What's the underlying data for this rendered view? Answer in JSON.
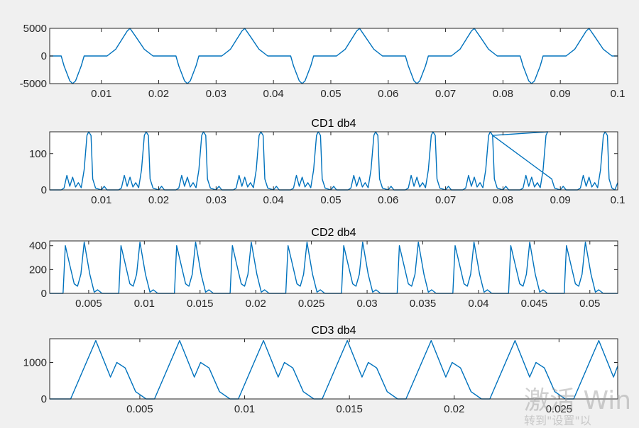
{
  "watermark": {
    "main": "激活 Win",
    "sub": "转到\"设置\"以"
  },
  "colors": {
    "line": "#0072bd",
    "axes": "#262626",
    "background": "#f0f0f0",
    "plot_area": "#ffffff"
  },
  "chart_data": [
    {
      "type": "line",
      "title": "",
      "xlim": [
        0.001,
        0.1
      ],
      "ylim": [
        -5000,
        5000
      ],
      "xticks": [
        0.01,
        0.02,
        0.03,
        0.04,
        0.05,
        0.06,
        0.07,
        0.08,
        0.09,
        0.1
      ],
      "xtick_labels": [
        "0.01",
        "0.02",
        "0.03",
        "0.04",
        "0.05",
        "0.06",
        "0.07",
        "0.08",
        "0.09",
        "0.1"
      ],
      "yticks": [
        5000,
        0,
        -5000
      ],
      "ytick_labels": [
        "5000",
        "0",
        "-5000"
      ],
      "series": [
        {
          "x": [
            0.001,
            0.003,
            0.0035,
            0.0045,
            0.005,
            0.0055,
            0.0065,
            0.007,
            0.011,
            0.0125,
            0.0145,
            0.015,
            0.016,
            0.0175,
            0.019,
            0.023,
            0.0235,
            0.0245,
            0.025,
            0.0255,
            0.0265,
            0.027,
            0.031,
            0.0325,
            0.0345,
            0.035,
            0.036,
            0.0375,
            0.039,
            0.043,
            0.0435,
            0.0445,
            0.045,
            0.0455,
            0.0465,
            0.047,
            0.051,
            0.0525,
            0.0545,
            0.055,
            0.056,
            0.0575,
            0.059,
            0.063,
            0.0635,
            0.0645,
            0.065,
            0.0655,
            0.0665,
            0.067,
            0.071,
            0.0725,
            0.0745,
            0.075,
            0.076,
            0.0775,
            0.079,
            0.083,
            0.0835,
            0.0845,
            0.085,
            0.0855,
            0.0865,
            0.087,
            0.091,
            0.0925,
            0.0945,
            0.095,
            0.096,
            0.0975,
            0.099,
            0.1
          ],
          "y": [
            0,
            0,
            -1800,
            -4500,
            -5000,
            -4500,
            -1800,
            0,
            0,
            1200,
            4500,
            5000,
            3500,
            1200,
            0,
            0,
            -1800,
            -4500,
            -5000,
            -4500,
            -1800,
            0,
            0,
            1200,
            4500,
            5000,
            3500,
            1200,
            0,
            0,
            -1800,
            -4500,
            -5000,
            -4500,
            -1800,
            0,
            0,
            1200,
            4500,
            5000,
            3500,
            1200,
            0,
            0,
            -1800,
            -4500,
            -5000,
            -4500,
            -1800,
            0,
            0,
            1200,
            4500,
            5000,
            3500,
            1200,
            0,
            0,
            -1800,
            -4500,
            -5000,
            -4500,
            -1800,
            0,
            0,
            1200,
            4500,
            5000,
            3500,
            1200,
            0,
            0
          ]
        }
      ]
    },
    {
      "type": "line",
      "title": "CD1 db4",
      "xlim": [
        0.001,
        0.1
      ],
      "ylim": [
        0,
        160
      ],
      "xticks": [
        0.01,
        0.02,
        0.03,
        0.04,
        0.05,
        0.06,
        0.07,
        0.08,
        0.09,
        0.1
      ],
      "xtick_labels": [
        "0.01",
        "0.02",
        "0.03",
        "0.04",
        "0.05",
        "0.06",
        "0.07",
        "0.08",
        "0.09",
        "0.1"
      ],
      "yticks": [
        100,
        0
      ],
      "ytick_labels": [
        "100",
        "0"
      ],
      "series": [
        {
          "x": [
            0.001,
            0.003,
            0.0035,
            0.004,
            0.0045,
            0.005,
            0.0055,
            0.006,
            0.0065,
            0.007,
            0.0075,
            0.0078,
            0.0082,
            0.0085,
            0.009,
            0.01,
            0.0105,
            0.011,
            0.013,
            0.0135,
            0.014,
            0.0145,
            0.015,
            0.0155,
            0.016,
            0.0165,
            0.017,
            0.0175,
            0.0178,
            0.0182,
            0.0185,
            0.019,
            0.02,
            0.0205,
            0.021,
            0.023,
            0.0235,
            0.024,
            0.0245,
            0.025,
            0.0255,
            0.026,
            0.0265,
            0.027,
            0.0275,
            0.0278,
            0.0282,
            0.0285,
            0.029,
            0.03,
            0.0305,
            0.031,
            0.033,
            0.0335,
            0.034,
            0.0345,
            0.035,
            0.0355,
            0.036,
            0.0365,
            0.037,
            0.0375,
            0.0378,
            0.0382,
            0.0385,
            0.039,
            0.04,
            0.0405,
            0.041,
            0.043,
            0.0435,
            0.044,
            0.0445,
            0.045,
            0.0455,
            0.046,
            0.0465,
            0.047,
            0.0475,
            0.0478,
            0.0482,
            0.0485,
            0.049,
            0.05,
            0.0505,
            0.051,
            0.053,
            0.0535,
            0.054,
            0.0545,
            0.055,
            0.0555,
            0.056,
            0.0565,
            0.057,
            0.0575,
            0.0578,
            0.0582,
            0.0585,
            0.059,
            0.06,
            0.0605,
            0.061,
            0.063,
            0.0635,
            0.064,
            0.0645,
            0.065,
            0.0655,
            0.066,
            0.0665,
            0.067,
            0.0675,
            0.0678,
            0.0682,
            0.0685,
            0.069,
            0.07,
            0.0705,
            0.071,
            0.073,
            0.0735,
            0.074,
            0.0745,
            0.075,
            0.0755,
            0.076,
            0.0765,
            0.077,
            0.0775,
            0.0778,
            0.0782,
            0.0785,
            0.079,
            0.08,
            0.0805,
            0.081,
            0.083,
            0.0835,
            0.084,
            0.0845,
            0.085,
            0.0855,
            0.086,
            0.0865,
            0.087,
            0.0875,
            0.0878,
            0.0782,
            0.0885,
            0.089,
            0.09,
            0.0905,
            0.091,
            0.093,
            0.0935,
            0.094,
            0.0945,
            0.095,
            0.0955,
            0.096,
            0.0965,
            0.097,
            0.0975,
            0.0978,
            0.0982,
            0.0985,
            0.099,
            0.0995,
            0.1
          ],
          "y": [
            0,
            0,
            5,
            40,
            10,
            35,
            8,
            20,
            6,
            55,
            150,
            160,
            150,
            30,
            5,
            0,
            10,
            0,
            0,
            5,
            40,
            10,
            35,
            8,
            20,
            6,
            55,
            150,
            160,
            150,
            30,
            5,
            0,
            10,
            0,
            0,
            5,
            40,
            10,
            35,
            8,
            20,
            6,
            55,
            150,
            160,
            150,
            30,
            5,
            0,
            10,
            0,
            0,
            5,
            40,
            10,
            35,
            8,
            20,
            6,
            55,
            150,
            160,
            150,
            30,
            5,
            0,
            10,
            0,
            0,
            5,
            40,
            10,
            35,
            8,
            20,
            6,
            55,
            150,
            160,
            150,
            30,
            5,
            0,
            10,
            0,
            0,
            5,
            40,
            10,
            35,
            8,
            20,
            6,
            55,
            150,
            160,
            150,
            30,
            5,
            0,
            10,
            0,
            0,
            5,
            40,
            10,
            35,
            8,
            20,
            6,
            55,
            150,
            160,
            150,
            30,
            5,
            0,
            10,
            0,
            0,
            5,
            40,
            10,
            35,
            8,
            20,
            6,
            55,
            150,
            160,
            150,
            30,
            5,
            0,
            10,
            0,
            0,
            5,
            40,
            10,
            35,
            8,
            20,
            6,
            55,
            150,
            160,
            150,
            30,
            5,
            0,
            10,
            0,
            0,
            5,
            40,
            10,
            35,
            8,
            20,
            6,
            55,
            150,
            160,
            150,
            30,
            5,
            0,
            20
          ]
        }
      ]
    },
    {
      "type": "line",
      "title": "CD2 db4",
      "xlim": [
        0.0015,
        0.0525
      ],
      "ylim": [
        0,
        440
      ],
      "xticks": [
        0.005,
        0.01,
        0.015,
        0.02,
        0.025,
        0.03,
        0.035,
        0.04,
        0.045,
        0.05
      ],
      "xtick_labels": [
        "0.005",
        "0.01",
        "0.015",
        "0.02",
        "0.025",
        "0.03",
        "0.035",
        "0.04",
        "0.045",
        "0.05"
      ],
      "yticks": [
        400,
        200,
        0
      ],
      "ytick_labels": [
        "400",
        "200",
        "0"
      ],
      "series": [
        {
          "x": [
            0.0015,
            0.0027,
            0.0029,
            0.0033,
            0.0037,
            0.004,
            0.0043,
            0.0046,
            0.0051,
            0.0055,
            0.0058,
            0.0062,
            0.0077,
            0.0079,
            0.0083,
            0.0087,
            0.009,
            0.0093,
            0.0096,
            0.0101,
            0.0105,
            0.0108,
            0.0112,
            0.0127,
            0.0129,
            0.0133,
            0.0137,
            0.014,
            0.0143,
            0.0146,
            0.0151,
            0.0155,
            0.0158,
            0.0162,
            0.0177,
            0.0179,
            0.0183,
            0.0187,
            0.019,
            0.0193,
            0.0196,
            0.0201,
            0.0205,
            0.0208,
            0.0212,
            0.0227,
            0.0229,
            0.0233,
            0.0237,
            0.024,
            0.0243,
            0.0246,
            0.0251,
            0.0255,
            0.0258,
            0.0262,
            0.0277,
            0.0279,
            0.0283,
            0.0287,
            0.029,
            0.0293,
            0.0296,
            0.0301,
            0.0305,
            0.0308,
            0.0312,
            0.0327,
            0.0329,
            0.0333,
            0.0337,
            0.034,
            0.0343,
            0.0346,
            0.0351,
            0.0355,
            0.0358,
            0.0362,
            0.0377,
            0.0379,
            0.0383,
            0.0387,
            0.039,
            0.0393,
            0.0396,
            0.0401,
            0.0405,
            0.0408,
            0.0412,
            0.0427,
            0.0429,
            0.0433,
            0.0437,
            0.044,
            0.0443,
            0.0446,
            0.0451,
            0.0455,
            0.0458,
            0.0462,
            0.0477,
            0.0479,
            0.0483,
            0.0487,
            0.049,
            0.0493,
            0.0496,
            0.0501,
            0.0505,
            0.0508,
            0.0512,
            0.0525
          ],
          "y": [
            0,
            0,
            400,
            240,
            80,
            60,
            160,
            430,
            160,
            10,
            30,
            0,
            0,
            400,
            240,
            80,
            60,
            160,
            430,
            160,
            10,
            30,
            0,
            0,
            400,
            240,
            80,
            60,
            160,
            430,
            160,
            10,
            30,
            0,
            0,
            400,
            240,
            80,
            60,
            160,
            430,
            160,
            10,
            30,
            0,
            0,
            400,
            240,
            80,
            60,
            160,
            430,
            160,
            10,
            30,
            0,
            0,
            400,
            240,
            80,
            60,
            160,
            430,
            160,
            10,
            30,
            0,
            0,
            400,
            240,
            80,
            60,
            160,
            430,
            160,
            10,
            30,
            0,
            0,
            400,
            240,
            80,
            60,
            160,
            430,
            160,
            10,
            30,
            0,
            0,
            400,
            240,
            80,
            60,
            160,
            430,
            160,
            10,
            30,
            0,
            0,
            400,
            240,
            80,
            60,
            160,
            430,
            160,
            10,
            30,
            0,
            0
          ]
        }
      ]
    },
    {
      "type": "line",
      "title": "CD3 db4",
      "xlim": [
        0.0007,
        0.0278
      ],
      "ylim": [
        0,
        1650
      ],
      "xticks": [
        0.005,
        0.01,
        0.015,
        0.02,
        0.025
      ],
      "xtick_labels": [
        "0.005",
        "0.01",
        "0.015",
        "0.02",
        "0.025"
      ],
      "yticks": [
        1000,
        0
      ],
      "ytick_labels": [
        "1000",
        "0"
      ],
      "series": [
        {
          "x": [
            0.0007,
            0.0015,
            0.0017,
            0.0029,
            0.0036,
            0.0039,
            0.0043,
            0.0048,
            0.0053,
            0.0057,
            0.0069,
            0.0076,
            0.0079,
            0.0083,
            0.0088,
            0.0093,
            0.0097,
            0.0109,
            0.0116,
            0.0119,
            0.0123,
            0.0128,
            0.0133,
            0.0137,
            0.0149,
            0.0156,
            0.0159,
            0.0163,
            0.0168,
            0.0173,
            0.0177,
            0.0189,
            0.0196,
            0.0199,
            0.0203,
            0.0208,
            0.0213,
            0.0217,
            0.0229,
            0.0236,
            0.0239,
            0.0243,
            0.0248,
            0.0253,
            0.0257,
            0.0269,
            0.0276,
            0.0278
          ],
          "y": [
            0,
            0,
            0,
            1600,
            600,
            1000,
            850,
            200,
            0,
            0,
            1600,
            600,
            1000,
            850,
            200,
            0,
            0,
            1600,
            600,
            1000,
            850,
            200,
            0,
            0,
            1600,
            600,
            1000,
            850,
            200,
            0,
            0,
            1600,
            600,
            1000,
            850,
            200,
            0,
            0,
            1600,
            600,
            1000,
            850,
            200,
            0,
            0,
            1600,
            600,
            900
          ]
        }
      ]
    }
  ]
}
